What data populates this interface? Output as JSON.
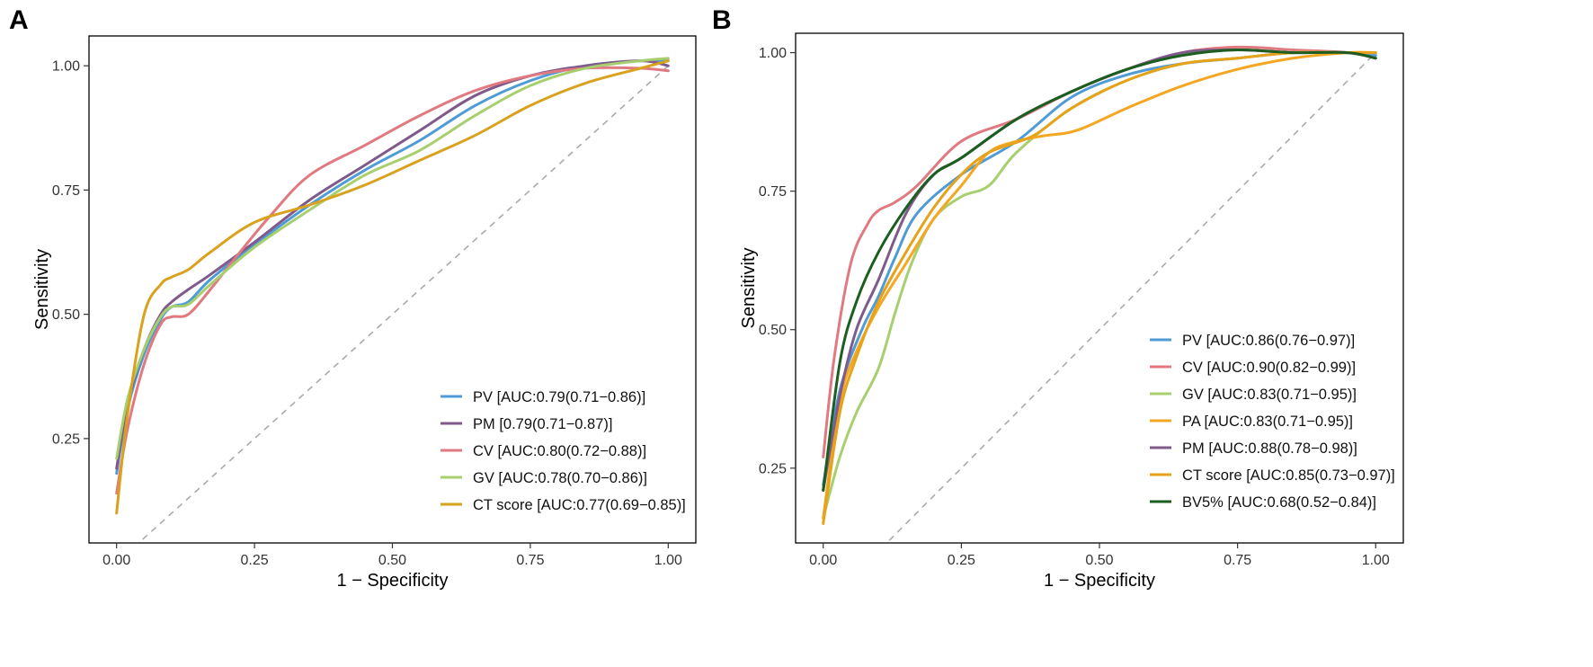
{
  "chart_data": [
    {
      "panel": "A",
      "type": "line",
      "xlabel": "1 − Specificity",
      "ylabel": "Sensitivity",
      "xlim": [
        -0.05,
        1.05
      ],
      "ylim": [
        0.04,
        1.06
      ],
      "xticks": [
        "0.00",
        "0.25",
        "0.50",
        "0.75",
        "1.00"
      ],
      "yticks": [
        "0.25",
        "0.50",
        "0.75",
        "1.00"
      ],
      "legend_position": "bottom-right",
      "reference_line": {
        "style": "dashed",
        "color": "#aaaaaa",
        "points": [
          [
            0,
            0
          ],
          [
            1,
            1
          ]
        ]
      },
      "series": [
        {
          "name": "PV",
          "label": "PV [AUC:0.79(0.71−0.86)]",
          "color": "#4e9bd6",
          "points": [
            [
              0,
              0.18
            ],
            [
              0.02,
              0.31
            ],
            [
              0.05,
              0.42
            ],
            [
              0.08,
              0.49
            ],
            [
              0.1,
              0.515
            ],
            [
              0.13,
              0.525
            ],
            [
              0.17,
              0.57
            ],
            [
              0.25,
              0.64
            ],
            [
              0.35,
              0.72
            ],
            [
              0.45,
              0.79
            ],
            [
              0.55,
              0.85
            ],
            [
              0.65,
              0.92
            ],
            [
              0.75,
              0.97
            ],
            [
              0.85,
              1.0
            ],
            [
              0.95,
              1.01
            ],
            [
              1,
              1.01
            ]
          ]
        },
        {
          "name": "PM",
          "label": "PM [0.79(0.71−0.87)]",
          "color": "#805a8a",
          "points": [
            [
              0,
              0.19
            ],
            [
              0.02,
              0.32
            ],
            [
              0.05,
              0.43
            ],
            [
              0.08,
              0.5
            ],
            [
              0.1,
              0.525
            ],
            [
              0.13,
              0.55
            ],
            [
              0.17,
              0.58
            ],
            [
              0.25,
              0.645
            ],
            [
              0.35,
              0.73
            ],
            [
              0.45,
              0.8
            ],
            [
              0.55,
              0.87
            ],
            [
              0.65,
              0.94
            ],
            [
              0.75,
              0.98
            ],
            [
              0.85,
              1.0
            ],
            [
              0.95,
              1.01
            ],
            [
              1,
              1.0
            ]
          ]
        },
        {
          "name": "CV",
          "label": "CV [AUC:0.80(0.72−0.88)]",
          "color": "#e07a80",
          "points": [
            [
              0,
              0.14
            ],
            [
              0.02,
              0.27
            ],
            [
              0.05,
              0.4
            ],
            [
              0.08,
              0.48
            ],
            [
              0.1,
              0.495
            ],
            [
              0.13,
              0.5
            ],
            [
              0.17,
              0.55
            ],
            [
              0.22,
              0.62
            ],
            [
              0.28,
              0.7
            ],
            [
              0.35,
              0.78
            ],
            [
              0.45,
              0.84
            ],
            [
              0.55,
              0.9
            ],
            [
              0.65,
              0.95
            ],
            [
              0.75,
              0.98
            ],
            [
              0.85,
              0.995
            ],
            [
              0.95,
              0.995
            ],
            [
              1,
              0.99
            ]
          ]
        },
        {
          "name": "GV",
          "label": "GV [AUC:0.78(0.70−0.86)]",
          "color": "#a8cf6e",
          "points": [
            [
              0,
              0.21
            ],
            [
              0.02,
              0.33
            ],
            [
              0.05,
              0.43
            ],
            [
              0.08,
              0.495
            ],
            [
              0.1,
              0.515
            ],
            [
              0.13,
              0.52
            ],
            [
              0.17,
              0.56
            ],
            [
              0.25,
              0.635
            ],
            [
              0.35,
              0.71
            ],
            [
              0.45,
              0.78
            ],
            [
              0.55,
              0.83
            ],
            [
              0.65,
              0.9
            ],
            [
              0.75,
              0.96
            ],
            [
              0.85,
              0.995
            ],
            [
              0.95,
              1.01
            ],
            [
              1,
              1.015
            ]
          ]
        },
        {
          "name": "CT score",
          "label": "CT score [AUC:0.77(0.69−0.85)]",
          "color": "#d9a21e",
          "points": [
            [
              0,
              0.1
            ],
            [
              0.02,
              0.3
            ],
            [
              0.05,
              0.5
            ],
            [
              0.08,
              0.56
            ],
            [
              0.1,
              0.575
            ],
            [
              0.13,
              0.59
            ],
            [
              0.17,
              0.625
            ],
            [
              0.25,
              0.685
            ],
            [
              0.35,
              0.72
            ],
            [
              0.45,
              0.76
            ],
            [
              0.55,
              0.81
            ],
            [
              0.65,
              0.86
            ],
            [
              0.75,
              0.92
            ],
            [
              0.85,
              0.965
            ],
            [
              0.95,
              0.995
            ],
            [
              1,
              1.01
            ]
          ]
        }
      ]
    },
    {
      "panel": "B",
      "type": "line",
      "xlabel": "1 − Specificity",
      "ylabel": "Sensitivity",
      "xlim": [
        -0.05,
        1.05
      ],
      "ylim": [
        0.115,
        1.035
      ],
      "xticks": [
        "0.00",
        "0.25",
        "0.50",
        "0.75",
        "1.00"
      ],
      "yticks": [
        "0.25",
        "0.50",
        "0.75",
        "1.00"
      ],
      "legend_position": "bottom-right",
      "reference_line": {
        "style": "dashed",
        "color": "#aaaaaa",
        "points": [
          [
            0,
            0
          ],
          [
            1,
            1
          ]
        ]
      },
      "series": [
        {
          "name": "PV",
          "label": "PV [AUC:0.86(0.76−0.97)]",
          "color": "#4e9bd6",
          "points": [
            [
              0,
              0.22
            ],
            [
              0.03,
              0.39
            ],
            [
              0.07,
              0.5
            ],
            [
              0.1,
              0.56
            ],
            [
              0.13,
              0.63
            ],
            [
              0.17,
              0.71
            ],
            [
              0.25,
              0.78
            ],
            [
              0.35,
              0.84
            ],
            [
              0.45,
              0.92
            ],
            [
              0.55,
              0.96
            ],
            [
              0.65,
              0.98
            ],
            [
              0.75,
              0.99
            ],
            [
              0.85,
              1.0
            ],
            [
              0.95,
              1.0
            ],
            [
              1,
              0.995
            ]
          ]
        },
        {
          "name": "CV",
          "label": "CV [AUC:0.90(0.82−0.99)]",
          "color": "#e07a80",
          "points": [
            [
              0,
              0.27
            ],
            [
              0.02,
              0.45
            ],
            [
              0.05,
              0.62
            ],
            [
              0.08,
              0.69
            ],
            [
              0.1,
              0.715
            ],
            [
              0.13,
              0.73
            ],
            [
              0.17,
              0.76
            ],
            [
              0.25,
              0.84
            ],
            [
              0.35,
              0.88
            ],
            [
              0.45,
              0.93
            ],
            [
              0.55,
              0.97
            ],
            [
              0.65,
              1.0
            ],
            [
              0.75,
              1.01
            ],
            [
              0.85,
              1.005
            ],
            [
              0.95,
              1.0
            ],
            [
              1,
              0.99
            ]
          ]
        },
        {
          "name": "GV",
          "label": "GV [AUC:0.83(0.71−0.95)]",
          "color": "#a8cf6e",
          "points": [
            [
              0,
              0.16
            ],
            [
              0.03,
              0.27
            ],
            [
              0.06,
              0.35
            ],
            [
              0.1,
              0.43
            ],
            [
              0.13,
              0.53
            ],
            [
              0.16,
              0.62
            ],
            [
              0.2,
              0.7
            ],
            [
              0.25,
              0.74
            ],
            [
              0.3,
              0.76
            ],
            [
              0.35,
              0.82
            ],
            [
              0.45,
              0.9
            ],
            [
              0.55,
              0.95
            ],
            [
              0.65,
              0.98
            ],
            [
              0.75,
              0.99
            ],
            [
              0.85,
              1.0
            ],
            [
              0.95,
              1.0
            ],
            [
              1,
              1.0
            ]
          ]
        },
        {
          "name": "PA",
          "label": "PA [AUC:0.83(0.71−0.95)]",
          "color": "#f5a623",
          "points": [
            [
              0,
              0.16
            ],
            [
              0.03,
              0.37
            ],
            [
              0.06,
              0.46
            ],
            [
              0.1,
              0.54
            ],
            [
              0.15,
              0.62
            ],
            [
              0.2,
              0.7
            ],
            [
              0.25,
              0.76
            ],
            [
              0.3,
              0.82
            ],
            [
              0.35,
              0.84
            ],
            [
              0.4,
              0.85
            ],
            [
              0.46,
              0.86
            ],
            [
              0.55,
              0.9
            ],
            [
              0.65,
              0.94
            ],
            [
              0.75,
              0.97
            ],
            [
              0.85,
              0.99
            ],
            [
              0.95,
              1.0
            ],
            [
              1,
              1.0
            ]
          ]
        },
        {
          "name": "PM",
          "label": "PM [AUC:0.88(0.78−0.98)]",
          "color": "#805a8a",
          "points": [
            [
              0,
              0.21
            ],
            [
              0.03,
              0.38
            ],
            [
              0.06,
              0.5
            ],
            [
              0.1,
              0.59
            ],
            [
              0.15,
              0.71
            ],
            [
              0.2,
              0.78
            ],
            [
              0.25,
              0.81
            ],
            [
              0.35,
              0.88
            ],
            [
              0.45,
              0.93
            ],
            [
              0.55,
              0.97
            ],
            [
              0.65,
              1.0
            ],
            [
              0.75,
              1.005
            ],
            [
              0.85,
              1.0
            ],
            [
              0.95,
              1.0
            ],
            [
              1,
              0.99
            ]
          ]
        },
        {
          "name": "CT score",
          "label": "CT score [AUC:0.85(0.73−0.97)]",
          "color": "#e6a21a",
          "points": [
            [
              0,
              0.15
            ],
            [
              0.03,
              0.35
            ],
            [
              0.06,
              0.45
            ],
            [
              0.1,
              0.55
            ],
            [
              0.15,
              0.64
            ],
            [
              0.2,
              0.72
            ],
            [
              0.25,
              0.78
            ],
            [
              0.3,
              0.82
            ],
            [
              0.38,
              0.85
            ],
            [
              0.45,
              0.9
            ],
            [
              0.55,
              0.95
            ],
            [
              0.65,
              0.98
            ],
            [
              0.75,
              0.99
            ],
            [
              0.85,
              1.0
            ],
            [
              0.95,
              1.0
            ],
            [
              1,
              1.0
            ]
          ]
        },
        {
          "name": "BV5%",
          "label": "BV5% [AUC:0.68(0.52−0.84)]",
          "color": "#1b5e20",
          "points": [
            [
              0,
              0.21
            ],
            [
              0.03,
              0.44
            ],
            [
              0.06,
              0.55
            ],
            [
              0.1,
              0.64
            ],
            [
              0.15,
              0.72
            ],
            [
              0.2,
              0.78
            ],
            [
              0.25,
              0.81
            ],
            [
              0.35,
              0.88
            ],
            [
              0.45,
              0.93
            ],
            [
              0.55,
              0.97
            ],
            [
              0.65,
              0.995
            ],
            [
              0.75,
              1.005
            ],
            [
              0.85,
              1.0
            ],
            [
              0.95,
              1.0
            ],
            [
              1,
              0.99
            ]
          ]
        }
      ]
    }
  ]
}
